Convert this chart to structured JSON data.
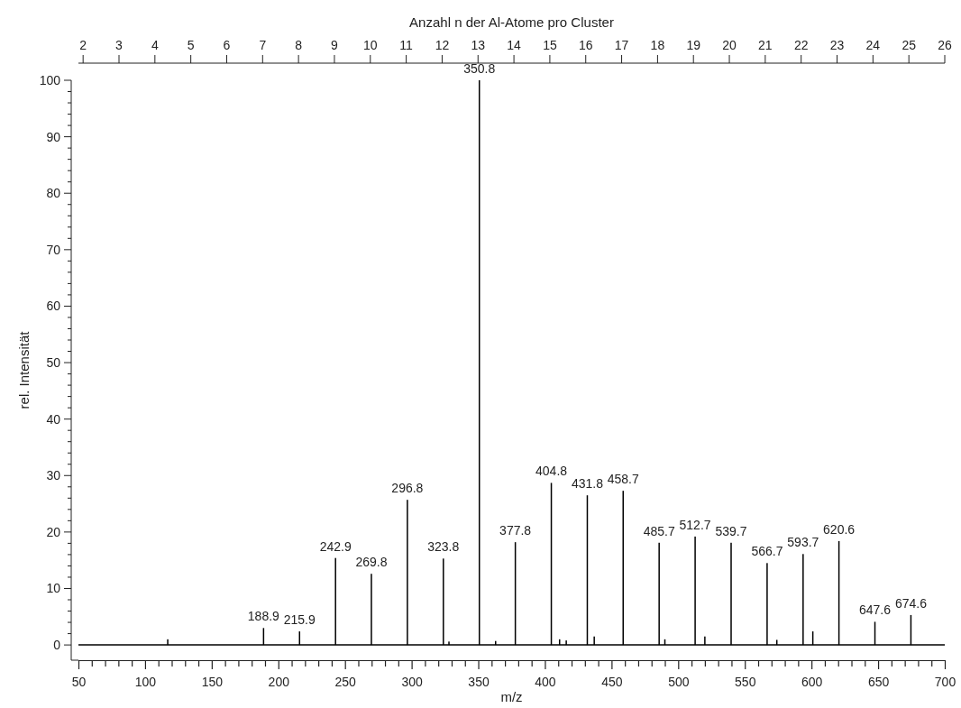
{
  "chart_data": {
    "type": "bar",
    "xlabel": "m/z",
    "ylabel": "rel. Intensität",
    "x2label": "Anzahl n der Al-Atome pro Cluster",
    "x": [
      117,
      188.9,
      215.9,
      242.9,
      269.8,
      296.8,
      323.8,
      328,
      350.8,
      363,
      377.8,
      404.8,
      411,
      416,
      431.8,
      437,
      458.7,
      485.7,
      490,
      512.7,
      520,
      539.7,
      566.7,
      574,
      593.7,
      601,
      620.6,
      647.6,
      674.6
    ],
    "values": [
      1.0,
      3.0,
      2.4,
      15.4,
      12.6,
      25.7,
      15.3,
      0.6,
      100,
      0.7,
      18.2,
      28.7,
      1.0,
      0.8,
      26.5,
      1.5,
      27.3,
      18.1,
      1.0,
      19.2,
      1.5,
      18.1,
      14.5,
      0.9,
      16.1,
      2.4,
      18.4,
      4.1,
      5.3
    ],
    "color": "#000000",
    "series": [
      {
        "type": "line",
        "x": [
          50,
          700
        ],
        "values": [
          0,
          0
        ],
        "color": "#000000"
      }
    ],
    "annotations": [
      {
        "text": "188.9",
        "x": 188.9,
        "y": 3.0
      },
      {
        "text": "215.9",
        "x": 215.9,
        "y": 2.4
      },
      {
        "text": "242.9",
        "x": 242.9,
        "y": 15.4
      },
      {
        "text": "269.8",
        "x": 269.8,
        "y": 12.6
      },
      {
        "text": "296.8",
        "x": 296.8,
        "y": 25.7
      },
      {
        "text": "323.8",
        "x": 323.8,
        "y": 15.3
      },
      {
        "text": "350.8",
        "x": 350.8,
        "y": 100
      },
      {
        "text": "377.8",
        "x": 377.8,
        "y": 18.2
      },
      {
        "text": "404.8",
        "x": 404.8,
        "y": 28.7
      },
      {
        "text": "431.8",
        "x": 431.8,
        "y": 26.5
      },
      {
        "text": "458.7",
        "x": 458.7,
        "y": 27.3
      },
      {
        "text": "485.7",
        "x": 485.7,
        "y": 18.1
      },
      {
        "text": "512.7",
        "x": 512.7,
        "y": 19.2
      },
      {
        "text": "539.7",
        "x": 539.7,
        "y": 18.1
      },
      {
        "text": "566.7",
        "x": 566.7,
        "y": 14.5
      },
      {
        "text": "593.7",
        "x": 593.7,
        "y": 16.1
      },
      {
        "text": "620.6",
        "x": 620.6,
        "y": 18.4
      },
      {
        "text": "647.6",
        "x": 647.6,
        "y": 4.1
      },
      {
        "text": "674.6",
        "x": 674.6,
        "y": 5.3
      }
    ],
    "xlim": [
      50,
      700
    ],
    "ylim": [
      -2.7,
      100
    ],
    "x2lim": [
      1.87,
      26
    ],
    "xticks": [
      50,
      {
        "value": 60,
        "label": null
      },
      {
        "value": 70,
        "label": null
      },
      {
        "value": 80,
        "label": null
      },
      {
        "value": 90,
        "label": null
      },
      100,
      {
        "value": 110,
        "label": null
      },
      {
        "value": 120,
        "label": null
      },
      {
        "value": 130,
        "label": null
      },
      {
        "value": 140,
        "label": null
      },
      150,
      {
        "value": 160,
        "label": null
      },
      {
        "value": 170,
        "label": null
      },
      {
        "value": 180,
        "label": null
      },
      {
        "value": 190,
        "label": null
      },
      200,
      {
        "value": 210,
        "label": null
      },
      {
        "value": 220,
        "label": null
      },
      {
        "value": 230,
        "label": null
      },
      {
        "value": 240,
        "label": null
      },
      250,
      {
        "value": 260,
        "label": null
      },
      {
        "value": 270,
        "label": null
      },
      {
        "value": 280,
        "label": null
      },
      {
        "value": 290,
        "label": null
      },
      300,
      {
        "value": 310,
        "label": null
      },
      {
        "value": 320,
        "label": null
      },
      {
        "value": 330,
        "label": null
      },
      {
        "value": 340,
        "label": null
      },
      350,
      {
        "value": 360,
        "label": null
      },
      {
        "value": 370,
        "label": null
      },
      {
        "value": 380,
        "label": null
      },
      {
        "value": 390,
        "label": null
      },
      400,
      {
        "value": 410,
        "label": null
      },
      {
        "value": 420,
        "label": null
      },
      {
        "value": 430,
        "label": null
      },
      {
        "value": 440,
        "label": null
      },
      450,
      {
        "value": 460,
        "label": null
      },
      {
        "value": 470,
        "label": null
      },
      {
        "value": 480,
        "label": null
      },
      {
        "value": 490,
        "label": null
      },
      500,
      {
        "value": 510,
        "label": null
      },
      {
        "value": 520,
        "label": null
      },
      {
        "value": 530,
        "label": null
      },
      {
        "value": 540,
        "label": null
      },
      550,
      {
        "value": 560,
        "label": null
      },
      {
        "value": 570,
        "label": null
      },
      {
        "value": 580,
        "label": null
      },
      {
        "value": 590,
        "label": null
      },
      600,
      {
        "value": 610,
        "label": null
      },
      {
        "value": 620,
        "label": null
      },
      {
        "value": 630,
        "label": null
      },
      {
        "value": 640,
        "label": null
      },
      650,
      {
        "value": 660,
        "label": null
      },
      {
        "value": 670,
        "label": null
      },
      {
        "value": 680,
        "label": null
      },
      {
        "value": 690,
        "label": null
      },
      700
    ],
    "yticks": [
      0,
      {
        "value": 2,
        "label": null
      },
      {
        "value": 4,
        "label": null
      },
      {
        "value": 6,
        "label": null
      },
      {
        "value": 8,
        "label": null
      },
      10,
      {
        "value": 12,
        "label": null
      },
      {
        "value": 14,
        "label": null
      },
      {
        "value": 16,
        "label": null
      },
      {
        "value": 18,
        "label": null
      },
      20,
      {
        "value": 22,
        "label": null
      },
      {
        "value": 24,
        "label": null
      },
      {
        "value": 26,
        "label": null
      },
      {
        "value": 28,
        "label": null
      },
      30,
      {
        "value": 32,
        "label": null
      },
      {
        "value": 34,
        "label": null
      },
      {
        "value": 36,
        "label": null
      },
      {
        "value": 38,
        "label": null
      },
      40,
      {
        "value": 42,
        "label": null
      },
      {
        "value": 44,
        "label": null
      },
      {
        "value": 46,
        "label": null
      },
      {
        "value": 48,
        "label": null
      },
      50,
      {
        "value": 52,
        "label": null
      },
      {
        "value": 54,
        "label": null
      },
      {
        "value": 56,
        "label": null
      },
      {
        "value": 58,
        "label": null
      },
      60,
      {
        "value": 62,
        "label": null
      },
      {
        "value": 64,
        "label": null
      },
      {
        "value": 66,
        "label": null
      },
      {
        "value": 68,
        "label": null
      },
      70,
      {
        "value": 72,
        "label": null
      },
      {
        "value": 74,
        "label": null
      },
      {
        "value": 76,
        "label": null
      },
      {
        "value": 78,
        "label": null
      },
      80,
      {
        "value": 82,
        "label": null
      },
      {
        "value": 84,
        "label": null
      },
      {
        "value": 86,
        "label": null
      },
      {
        "value": 88,
        "label": null
      },
      90,
      {
        "value": 92,
        "label": null
      },
      {
        "value": 94,
        "label": null
      },
      {
        "value": 96,
        "label": null
      },
      {
        "value": 98,
        "label": null
      },
      100
    ],
    "x2ticks": [
      2,
      3,
      4,
      5,
      6,
      7,
      8,
      9,
      10,
      11,
      12,
      13,
      14,
      15,
      16,
      17,
      18,
      19,
      20,
      21,
      22,
      23,
      24,
      25,
      26
    ],
    "grid": false
  }
}
